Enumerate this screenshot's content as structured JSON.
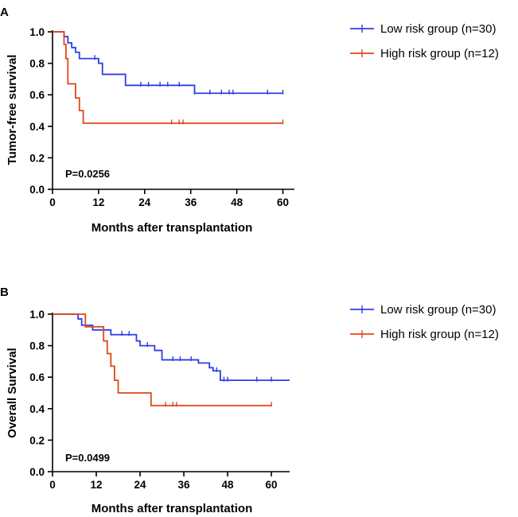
{
  "colors": {
    "low": "#2e3ee6",
    "high": "#e0461c",
    "axis": "#000000"
  },
  "chart_data": [
    {
      "type": "line",
      "panel_label": "A",
      "title": "",
      "xlabel": "Months after transplantation",
      "ylabel": "Tumor-free survival",
      "xlim": [
        0,
        63
      ],
      "ylim": [
        0,
        1.0
      ],
      "xticks": [
        0,
        12,
        24,
        36,
        48,
        60
      ],
      "yticks": [
        0.0,
        0.2,
        0.4,
        0.6,
        0.8,
        1.0
      ],
      "xtick_labels": [
        "0",
        "12",
        "24",
        "36",
        "48",
        "60"
      ],
      "ytick_labels": [
        "0.0",
        "0.2",
        "0.4",
        "0.6",
        "0.8",
        "1.0"
      ],
      "annotation": "P=0.0256",
      "legend": [
        "Low risk group (n=30)",
        "High risk group (n=12)"
      ],
      "legend_position": "right",
      "series": [
        {
          "name": "Low risk group (n=30)",
          "color_key": "low",
          "steps": [
            [
              0,
              1.0
            ],
            [
              3,
              0.97
            ],
            [
              4,
              0.93
            ],
            [
              5,
              0.9
            ],
            [
              6,
              0.87
            ],
            [
              7,
              0.83
            ],
            [
              12,
              0.8
            ],
            [
              13,
              0.73
            ],
            [
              19,
              0.66
            ],
            [
              37,
              0.61
            ],
            [
              60,
              0.61
            ]
          ],
          "censors": [
            [
              11,
              0.83
            ],
            [
              23,
              0.66
            ],
            [
              25,
              0.66
            ],
            [
              28,
              0.66
            ],
            [
              30,
              0.66
            ],
            [
              33,
              0.66
            ],
            [
              37,
              0.61
            ],
            [
              41,
              0.61
            ],
            [
              44,
              0.61
            ],
            [
              46,
              0.61
            ],
            [
              47,
              0.61
            ],
            [
              56,
              0.61
            ],
            [
              60,
              0.61
            ]
          ]
        },
        {
          "name": "High risk group (n=12)",
          "color_key": "high",
          "steps": [
            [
              0,
              1.0
            ],
            [
              3,
              0.92
            ],
            [
              3.5,
              0.83
            ],
            [
              4,
              0.67
            ],
            [
              6,
              0.58
            ],
            [
              7,
              0.5
            ],
            [
              8,
              0.42
            ],
            [
              60,
              0.42
            ]
          ],
          "censors": [
            [
              31,
              0.42
            ],
            [
              33,
              0.42
            ],
            [
              34,
              0.42
            ],
            [
              60,
              0.42
            ]
          ]
        }
      ]
    },
    {
      "type": "line",
      "panel_label": "B",
      "title": "",
      "xlabel": "Months after transplantation",
      "ylabel": "Overall Survival",
      "xlim": [
        0,
        65
      ],
      "ylim": [
        0,
        1.0
      ],
      "xticks": [
        0,
        12,
        24,
        36,
        48,
        60
      ],
      "yticks": [
        0.0,
        0.2,
        0.4,
        0.6,
        0.8,
        1.0
      ],
      "xtick_labels": [
        "0",
        "12",
        "24",
        "36",
        "48",
        "60"
      ],
      "ytick_labels": [
        "0.0",
        "0.2",
        "0.4",
        "0.6",
        "0.8",
        "1.0"
      ],
      "annotation": "P=0.0499",
      "legend": [
        "Low risk group (n=30)",
        "High risk group (n=12)"
      ],
      "legend_position": "right",
      "series": [
        {
          "name": "Low risk group (n=30)",
          "color_key": "low",
          "steps": [
            [
              0,
              1.0
            ],
            [
              7,
              0.97
            ],
            [
              8,
              0.93
            ],
            [
              11,
              0.9
            ],
            [
              16,
              0.87
            ],
            [
              23,
              0.83
            ],
            [
              24,
              0.8
            ],
            [
              28,
              0.77
            ],
            [
              30,
              0.71
            ],
            [
              40,
              0.69
            ],
            [
              43,
              0.66
            ],
            [
              44,
              0.64
            ],
            [
              46,
              0.58
            ],
            [
              65,
              0.58
            ]
          ],
          "censors": [
            [
              19,
              0.87
            ],
            [
              21,
              0.87
            ],
            [
              26,
              0.8
            ],
            [
              33,
              0.71
            ],
            [
              35,
              0.71
            ],
            [
              38,
              0.71
            ],
            [
              45,
              0.64
            ],
            [
              47,
              0.58
            ],
            [
              48,
              0.58
            ],
            [
              56,
              0.58
            ],
            [
              60,
              0.58
            ]
          ]
        },
        {
          "name": "High risk group (n=12)",
          "color_key": "high",
          "steps": [
            [
              0,
              1.0
            ],
            [
              9,
              0.92
            ],
            [
              14,
              0.83
            ],
            [
              15,
              0.75
            ],
            [
              16,
              0.67
            ],
            [
              17,
              0.58
            ],
            [
              18,
              0.5
            ],
            [
              27,
              0.42
            ],
            [
              60,
              0.42
            ]
          ],
          "censors": [
            [
              31,
              0.42
            ],
            [
              33,
              0.42
            ],
            [
              34,
              0.42
            ],
            [
              60,
              0.42
            ]
          ]
        }
      ]
    }
  ]
}
